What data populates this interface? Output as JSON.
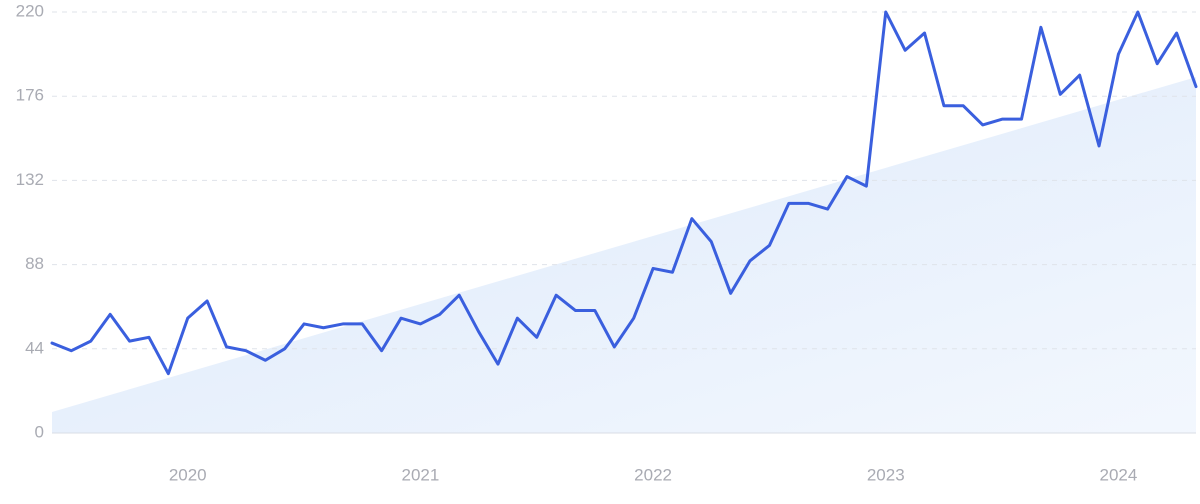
{
  "chart_data": {
    "type": "line",
    "xlim": [
      0,
      59
    ],
    "xticks": [
      {
        "value": 7,
        "label": "2020"
      },
      {
        "value": 19,
        "label": "2021"
      },
      {
        "value": 31,
        "label": "2022"
      },
      {
        "value": 43,
        "label": "2023"
      },
      {
        "value": 55,
        "label": "2024"
      }
    ],
    "ylim": [
      0,
      220
    ],
    "yticks": [
      0,
      44,
      88,
      132,
      176,
      220
    ],
    "grid": true,
    "series": [
      {
        "color": "#3a5fde",
        "values": [
          47,
          43,
          48,
          62,
          48,
          50,
          31,
          60,
          69,
          45,
          43,
          38,
          44,
          57,
          55,
          57,
          57,
          43,
          60,
          57,
          62,
          72,
          53,
          36,
          60,
          50,
          72,
          64,
          64,
          45,
          60,
          86,
          84,
          112,
          100,
          73,
          90,
          98,
          120,
          120,
          117,
          134,
          129,
          220,
          200,
          209,
          171,
          171,
          161,
          164,
          164,
          212,
          177,
          187,
          150,
          198,
          220,
          193,
          209,
          181
        ]
      }
    ],
    "trend": {
      "color": "#dce9fb",
      "values": [
        11,
        186
      ]
    }
  }
}
